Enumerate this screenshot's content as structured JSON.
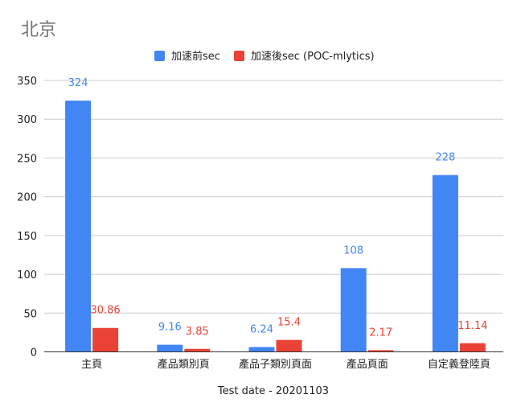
{
  "chart_data": {
    "type": "bar",
    "title": "北京",
    "xlabel": "Test date - 20201103",
    "ylabel": "",
    "ylim": [
      0,
      350
    ],
    "yticks": [
      0,
      50,
      100,
      150,
      200,
      250,
      300,
      350
    ],
    "grid": true,
    "legend_position": "top",
    "categories": [
      "主頁",
      "產品類別頁",
      "產品子類別頁面",
      "產品頁面",
      "自定義登陸頁"
    ],
    "series": [
      {
        "name": "加速前sec",
        "color": "#4285F4",
        "values": [
          324,
          9.16,
          6.24,
          108,
          228
        ],
        "labels": [
          "324",
          "9.16",
          "6.24",
          "108",
          "228"
        ]
      },
      {
        "name": "加速後sec (POC-mlytics)",
        "color": "#EA4335",
        "values": [
          30.86,
          3.85,
          15.4,
          2.17,
          11.14
        ],
        "labels": [
          "30.86",
          "3.85",
          "15.4",
          "2.17",
          "11.14"
        ]
      }
    ]
  }
}
